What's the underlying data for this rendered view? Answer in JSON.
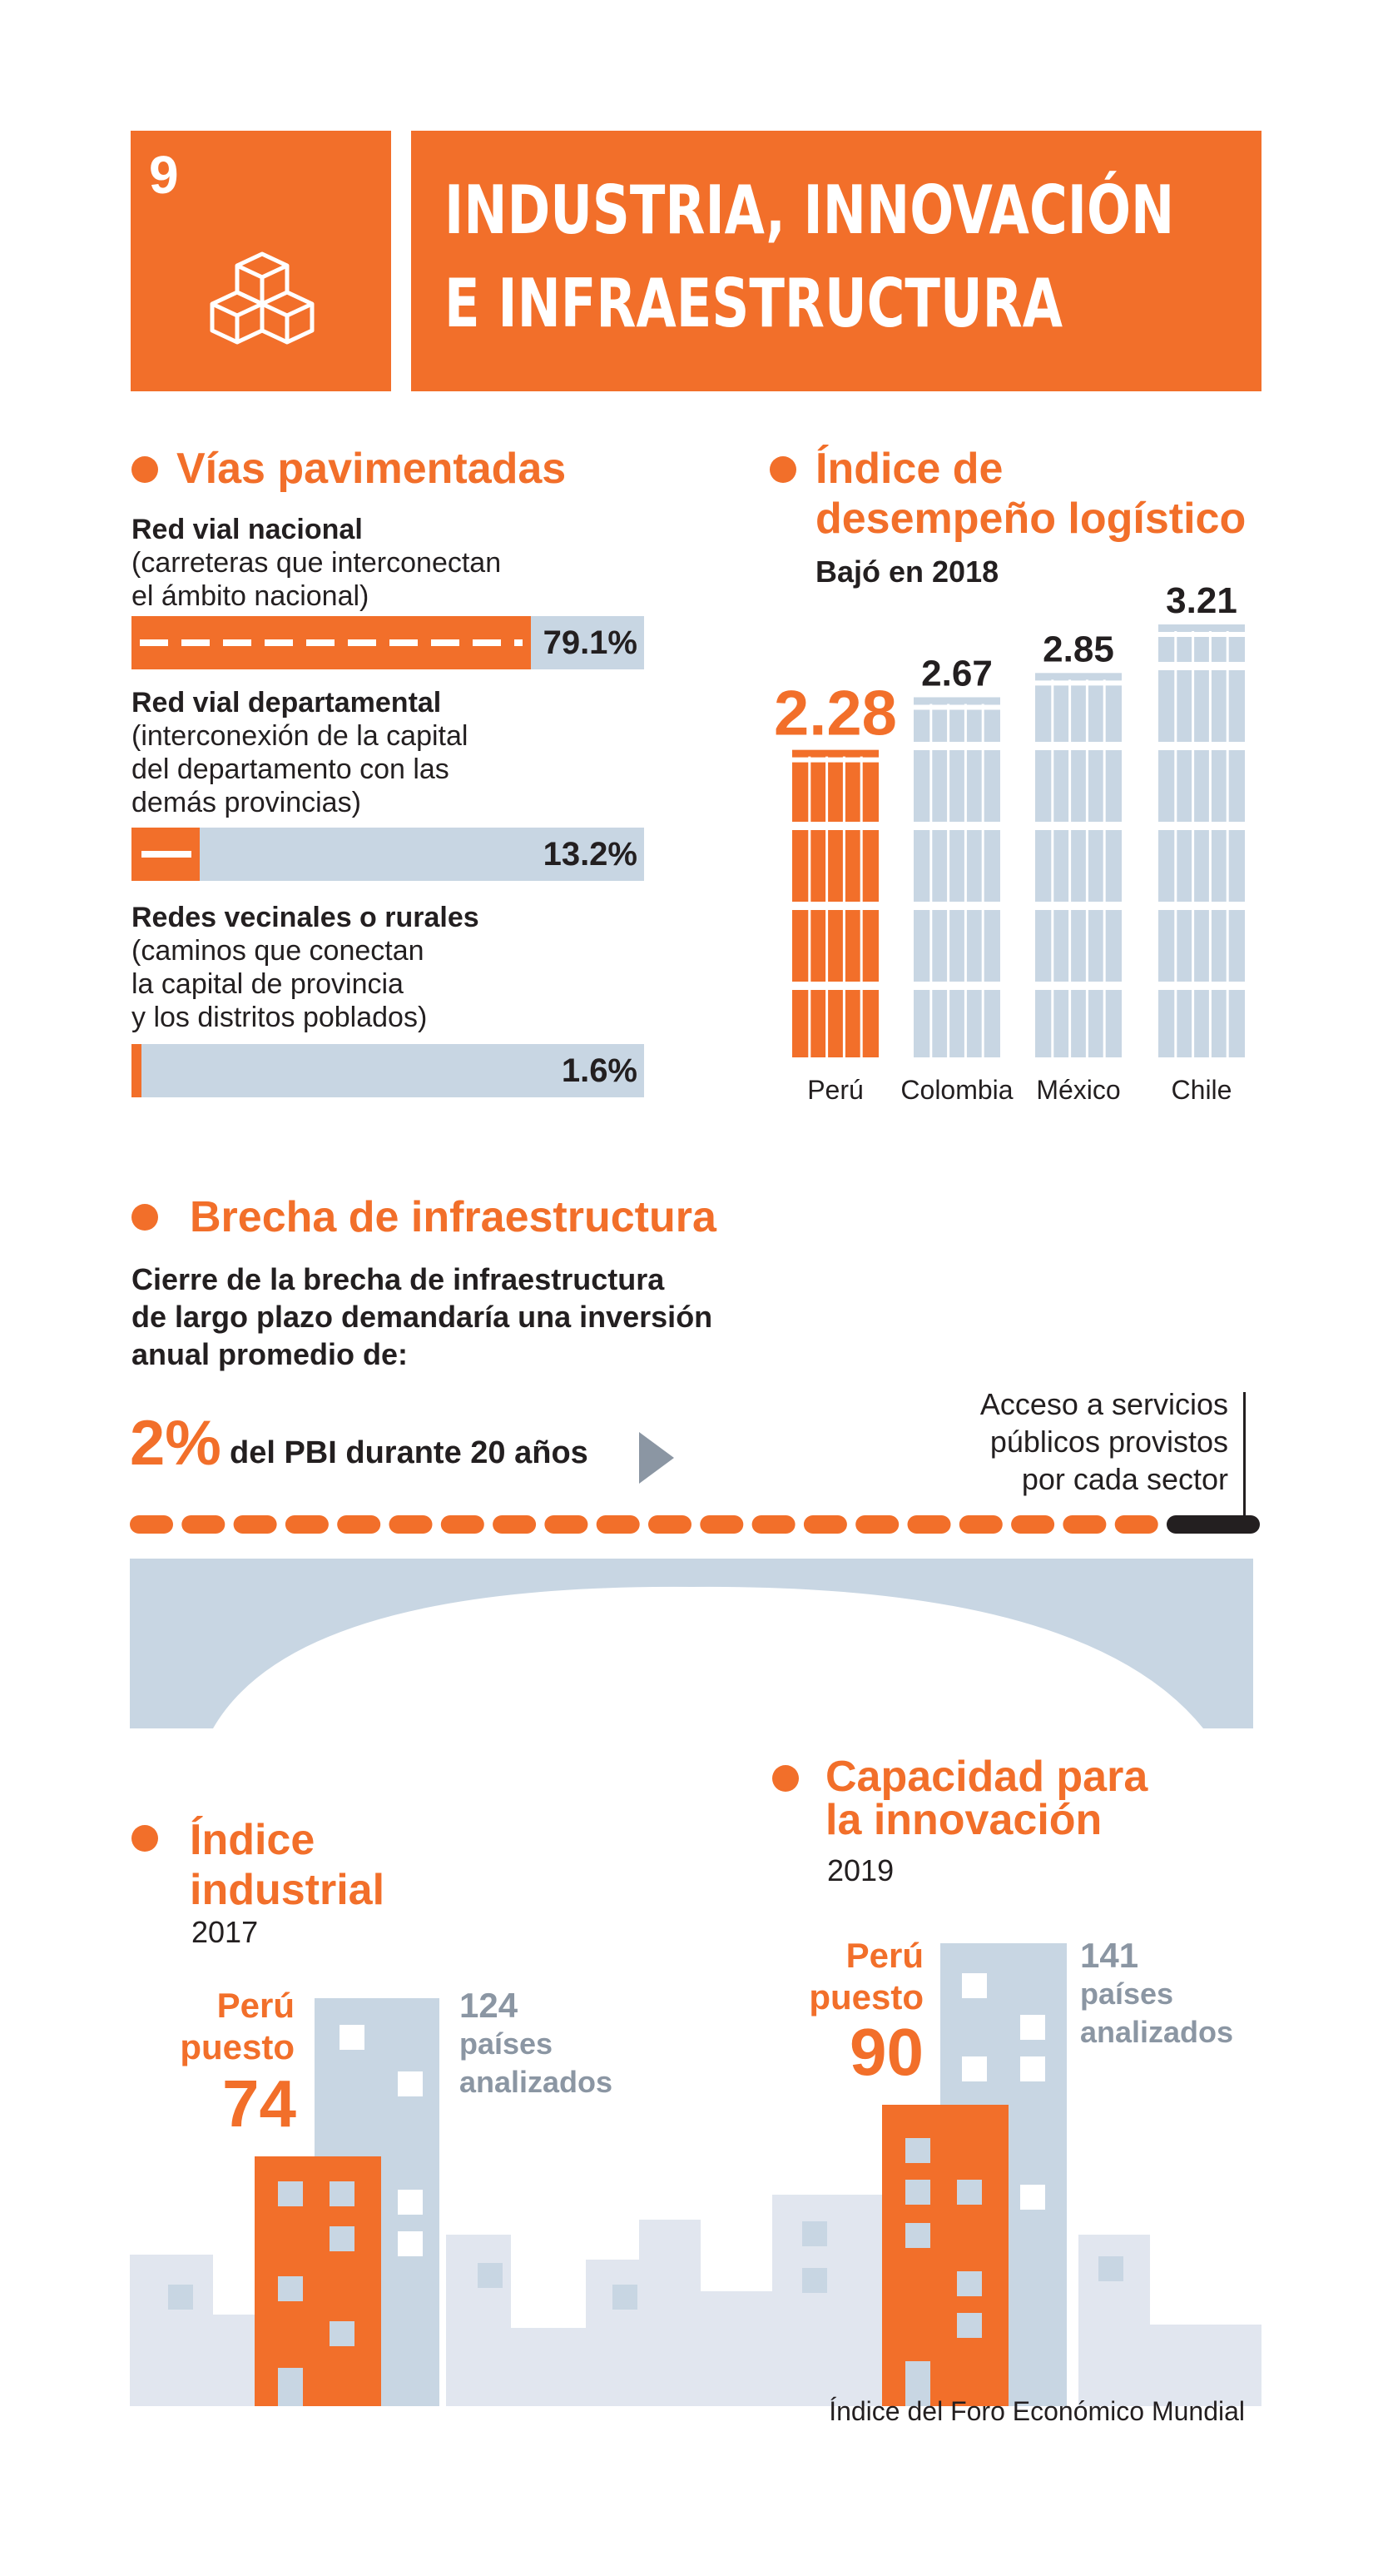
{
  "goal": {
    "number": "9",
    "title_line1": "INDUSTRIA, INNOVACIÓN",
    "title_line2": "E INFRAESTRUCTURA",
    "icon": "stacked-cubes-icon",
    "color": "#f26f2a"
  },
  "vias": {
    "title": "Vías pavimentadas",
    "items": [
      {
        "name": "Red vial nacional",
        "desc1": "(carreteras que interconectan",
        "desc2": "el ámbito nacional)",
        "desc3": "",
        "value": "79.1%",
        "fraction": 0.791
      },
      {
        "name": "Red vial departamental",
        "desc1": "(interconexión de la capital",
        "desc2": "del departamento con las",
        "desc3": "demás provincias)",
        "value": "13.2%",
        "fraction": 0.132
      },
      {
        "name": "Redes vecinales o rurales",
        "desc1": "(caminos que conectan",
        "desc2": "la capital de provincia",
        "desc3": "y los distritos poblados)",
        "value": "1.6%",
        "fraction": 0.016
      }
    ]
  },
  "logistica": {
    "title_line1": "Índice de",
    "title_line2": "desempeño logístico",
    "subtitle": "Bajó en 2018"
  },
  "chart_data": {
    "type": "bar",
    "categories": [
      "Perú",
      "Colombia",
      "México",
      "Chile"
    ],
    "values": [
      2.28,
      2.67,
      2.85,
      3.21
    ],
    "labels": [
      "2.28",
      "2.67",
      "2.85",
      "3.21"
    ],
    "highlight": "Perú",
    "colors": {
      "highlight": "#f26f2a",
      "other": "#c8d6e3"
    },
    "ylim": [
      0,
      3.21
    ]
  },
  "brecha": {
    "title": "Brecha de infraestructura",
    "desc1": "Cierre de la brecha de infraestructura",
    "desc2": "de largo plazo demandaría una inversión",
    "desc3": "anual promedio de:",
    "percent": "2%",
    "percent_text": "del PBI durante 20 años",
    "access1": "Acceso a servicios",
    "access2": "públicos provistos",
    "access3": "por cada sector"
  },
  "industrial": {
    "title_line1": "Índice",
    "title_line2": "industrial",
    "year": "2017",
    "peru1": "Perú",
    "peru2": "puesto",
    "rank": "74",
    "total": "124",
    "total1": "países",
    "total2": "analizados"
  },
  "innovacion": {
    "title_line1": "Capacidad para",
    "title_line2": "la innovación",
    "year": "2019",
    "peru1": "Perú",
    "peru2": "puesto",
    "rank": "90",
    "total": "141",
    "total1": "países",
    "total2": "analizados"
  },
  "source": "Índice del Foro Económico Mundial"
}
